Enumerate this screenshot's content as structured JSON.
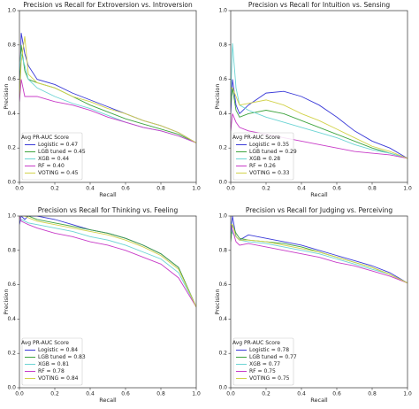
{
  "chart_data": [
    {
      "type": "line",
      "title": "Precision vs Recall for Extroversion vs. Introversion",
      "x_label": "Recall",
      "y_label": "Precision",
      "legend_title": "Avg PR-AUC Score",
      "legend": "lower left",
      "x": [
        0,
        0.01,
        0.03,
        0.05,
        0.1,
        0.2,
        0.3,
        0.4,
        0.5,
        0.6,
        0.7,
        0.8,
        0.9,
        1.0
      ],
      "series": [
        {
          "name": "Logistic = 0.47",
          "color": "#3a3ad8",
          "values": [
            0.5,
            0.87,
            0.75,
            0.68,
            0.6,
            0.57,
            0.52,
            0.48,
            0.44,
            0.4,
            0.36,
            0.33,
            0.29,
            0.23
          ]
        },
        {
          "name": "LGB tuned = 0.45",
          "color": "#3fa43f",
          "values": [
            0.6,
            0.8,
            0.65,
            0.6,
            0.58,
            0.55,
            0.5,
            0.45,
            0.41,
            0.37,
            0.34,
            0.31,
            0.28,
            0.23
          ]
        },
        {
          "name": "XGB = 0.44",
          "color": "#6cd4d4",
          "values": [
            0.65,
            0.75,
            0.68,
            0.6,
            0.55,
            0.5,
            0.46,
            0.43,
            0.39,
            0.35,
            0.32,
            0.3,
            0.27,
            0.23
          ]
        },
        {
          "name": "RF = 0.40",
          "color": "#c83cc8",
          "values": [
            0.47,
            0.6,
            0.5,
            0.5,
            0.5,
            0.47,
            0.45,
            0.42,
            0.38,
            0.35,
            0.32,
            0.3,
            0.27,
            0.23
          ]
        },
        {
          "name": "VOTING = 0.45",
          "color": "#d2d24a",
          "values": [
            0.5,
            0.7,
            0.85,
            0.63,
            0.58,
            0.55,
            0.5,
            0.47,
            0.43,
            0.4,
            0.36,
            0.33,
            0.29,
            0.23
          ]
        }
      ],
      "xlim": [
        0,
        1
      ],
      "ylim": [
        0,
        1
      ],
      "xticks": [
        {
          "value": 0,
          "label": "0.0"
        },
        {
          "value": 0.2,
          "label": "0.2"
        },
        {
          "value": 0.4,
          "label": "0.4"
        },
        {
          "value": 0.6,
          "label": "0.6"
        },
        {
          "value": 0.8,
          "label": "0.8"
        },
        {
          "value": 1,
          "label": "1.0"
        }
      ],
      "yticks": [
        {
          "value": 0,
          "label": "0.0"
        },
        {
          "value": 0.2,
          "label": "0.2"
        },
        {
          "value": 0.4,
          "label": "0.4"
        },
        {
          "value": 0.6,
          "label": "0.6"
        },
        {
          "value": 0.8,
          "label": "0.8"
        },
        {
          "value": 1,
          "label": "1.0"
        }
      ]
    },
    {
      "type": "line",
      "title": "Precision vs Recall for Intuition vs. Sensing",
      "x_label": "Recall",
      "y_label": "Precision",
      "legend_title": "Avg PR-AUC Score",
      "legend": "lower left",
      "x": [
        0,
        0.01,
        0.03,
        0.05,
        0.1,
        0.2,
        0.3,
        0.4,
        0.5,
        0.6,
        0.7,
        0.8,
        0.9,
        1.0
      ],
      "series": [
        {
          "name": "Logistic = 0.35",
          "color": "#3a3ad8",
          "values": [
            0.4,
            0.6,
            0.45,
            0.4,
            0.45,
            0.52,
            0.53,
            0.5,
            0.45,
            0.38,
            0.3,
            0.24,
            0.2,
            0.14
          ]
        },
        {
          "name": "LGB tuned = 0.29",
          "color": "#3fa43f",
          "values": [
            0.45,
            0.55,
            0.42,
            0.38,
            0.4,
            0.42,
            0.4,
            0.36,
            0.32,
            0.28,
            0.24,
            0.2,
            0.17,
            0.14
          ]
        },
        {
          "name": "XGB = 0.28",
          "color": "#6cd4d4",
          "values": [
            0.5,
            0.81,
            0.55,
            0.45,
            0.42,
            0.38,
            0.35,
            0.32,
            0.29,
            0.26,
            0.22,
            0.19,
            0.17,
            0.14
          ]
        },
        {
          "name": "RF = 0.26",
          "color": "#c83cc8",
          "values": [
            0.3,
            0.4,
            0.35,
            0.32,
            0.3,
            0.28,
            0.26,
            0.24,
            0.22,
            0.2,
            0.18,
            0.17,
            0.16,
            0.14
          ]
        },
        {
          "name": "VOTING = 0.33",
          "color": "#d2d24a",
          "values": [
            0.55,
            0.55,
            0.5,
            0.45,
            0.46,
            0.48,
            0.45,
            0.4,
            0.36,
            0.31,
            0.26,
            0.21,
            0.18,
            0.14
          ]
        }
      ],
      "xlim": [
        0,
        1
      ],
      "ylim": [
        0,
        1
      ],
      "xticks": [
        {
          "value": 0,
          "label": "0.0"
        },
        {
          "value": 0.2,
          "label": "0.2"
        },
        {
          "value": 0.4,
          "label": "0.4"
        },
        {
          "value": 0.6,
          "label": "0.6"
        },
        {
          "value": 0.8,
          "label": "0.8"
        },
        {
          "value": 1,
          "label": "1.0"
        }
      ],
      "yticks": [
        {
          "value": 0,
          "label": "0.0"
        },
        {
          "value": 0.2,
          "label": "0.2"
        },
        {
          "value": 0.4,
          "label": "0.4"
        },
        {
          "value": 0.6,
          "label": "0.6"
        },
        {
          "value": 0.8,
          "label": "0.8"
        },
        {
          "value": 1,
          "label": "1.0"
        }
      ]
    },
    {
      "type": "line",
      "title": "Precision vs Recall for Thinking vs. Feeling",
      "x_label": "Recall",
      "y_label": "Precision",
      "legend_title": "Avg PR-AUC Score",
      "legend": "lower left",
      "x": [
        0,
        0.01,
        0.03,
        0.05,
        0.1,
        0.2,
        0.3,
        0.4,
        0.5,
        0.6,
        0.7,
        0.8,
        0.9,
        1.0
      ],
      "series": [
        {
          "name": "Logistic = 0.84",
          "color": "#3a3ad8",
          "values": [
            0.95,
            1.0,
            0.98,
            1.0,
            1.0,
            0.98,
            0.95,
            0.92,
            0.9,
            0.87,
            0.83,
            0.78,
            0.7,
            0.47
          ]
        },
        {
          "name": "LGB tuned = 0.83",
          "color": "#3fa43f",
          "values": [
            1.0,
            1.0,
            1.0,
            1.0,
            0.98,
            0.96,
            0.94,
            0.92,
            0.9,
            0.87,
            0.83,
            0.78,
            0.7,
            0.47
          ]
        },
        {
          "name": "XGB = 0.81",
          "color": "#6cd4d4",
          "values": [
            1.0,
            0.98,
            0.97,
            0.96,
            0.95,
            0.93,
            0.91,
            0.88,
            0.86,
            0.83,
            0.79,
            0.75,
            0.67,
            0.47
          ]
        },
        {
          "name": "RF = 0.78",
          "color": "#c83cc8",
          "values": [
            1.0,
            0.97,
            0.96,
            0.95,
            0.93,
            0.9,
            0.88,
            0.85,
            0.83,
            0.8,
            0.76,
            0.72,
            0.64,
            0.47
          ]
        },
        {
          "name": "VOTING = 0.84",
          "color": "#d2d24a",
          "values": [
            1.0,
            1.0,
            1.0,
            0.99,
            0.97,
            0.95,
            0.93,
            0.91,
            0.89,
            0.86,
            0.82,
            0.77,
            0.69,
            0.47
          ]
        }
      ],
      "xlim": [
        0,
        1
      ],
      "ylim": [
        0,
        1
      ],
      "xticks": [
        {
          "value": 0,
          "label": "0.0"
        },
        {
          "value": 0.2,
          "label": "0.2"
        },
        {
          "value": 0.4,
          "label": "0.4"
        },
        {
          "value": 0.6,
          "label": "0.6"
        },
        {
          "value": 0.8,
          "label": "0.8"
        },
        {
          "value": 1,
          "label": "1.0"
        }
      ],
      "yticks": [
        {
          "value": 0,
          "label": "0.0"
        },
        {
          "value": 0.2,
          "label": "0.2"
        },
        {
          "value": 0.4,
          "label": "0.4"
        },
        {
          "value": 0.6,
          "label": "0.6"
        },
        {
          "value": 0.8,
          "label": "0.8"
        },
        {
          "value": 1,
          "label": "1.0"
        }
      ]
    },
    {
      "type": "line",
      "title": "Precision vs Recall for Judging vs. Perceiving",
      "x_label": "Recall",
      "y_label": "Precision",
      "legend_title": "Avg PR-AUC Score",
      "legend": "lower left",
      "x": [
        0,
        0.01,
        0.03,
        0.05,
        0.1,
        0.2,
        0.3,
        0.4,
        0.5,
        0.6,
        0.7,
        0.8,
        0.9,
        1.0
      ],
      "series": [
        {
          "name": "Logistic = 0.78",
          "color": "#3a3ad8",
          "values": [
            0.9,
            1.0,
            0.88,
            0.86,
            0.89,
            0.87,
            0.85,
            0.83,
            0.8,
            0.77,
            0.74,
            0.71,
            0.67,
            0.61
          ]
        },
        {
          "name": "LGB tuned = 0.77",
          "color": "#3fa43f",
          "values": [
            0.85,
            0.95,
            0.9,
            0.87,
            0.86,
            0.85,
            0.84,
            0.82,
            0.79,
            0.76,
            0.73,
            0.7,
            0.66,
            0.61
          ]
        },
        {
          "name": "XGB = 0.77",
          "color": "#6cd4d4",
          "values": [
            0.97,
            0.9,
            0.88,
            0.86,
            0.85,
            0.84,
            0.82,
            0.8,
            0.78,
            0.75,
            0.72,
            0.69,
            0.66,
            0.61
          ]
        },
        {
          "name": "RF = 0.75",
          "color": "#c83cc8",
          "values": [
            0.95,
            0.92,
            0.85,
            0.83,
            0.84,
            0.82,
            0.8,
            0.78,
            0.76,
            0.73,
            0.71,
            0.68,
            0.65,
            0.61
          ]
        },
        {
          "name": "VOTING = 0.75",
          "color": "#d2d24a",
          "values": [
            0.95,
            0.95,
            0.88,
            0.86,
            0.86,
            0.85,
            0.83,
            0.81,
            0.79,
            0.76,
            0.73,
            0.7,
            0.66,
            0.61
          ]
        }
      ],
      "xlim": [
        0,
        1
      ],
      "ylim": [
        0,
        1
      ],
      "xticks": [
        {
          "value": 0,
          "label": "0.0"
        },
        {
          "value": 0.2,
          "label": "0.2"
        },
        {
          "value": 0.4,
          "label": "0.4"
        },
        {
          "value": 0.6,
          "label": "0.6"
        },
        {
          "value": 0.8,
          "label": "0.8"
        },
        {
          "value": 1,
          "label": "1.0"
        }
      ],
      "yticks": [
        {
          "value": 0,
          "label": "0.0"
        },
        {
          "value": 0.2,
          "label": "0.2"
        },
        {
          "value": 0.4,
          "label": "0.4"
        },
        {
          "value": 0.6,
          "label": "0.6"
        },
        {
          "value": 0.8,
          "label": "0.8"
        },
        {
          "value": 1,
          "label": "1.0"
        }
      ]
    }
  ]
}
